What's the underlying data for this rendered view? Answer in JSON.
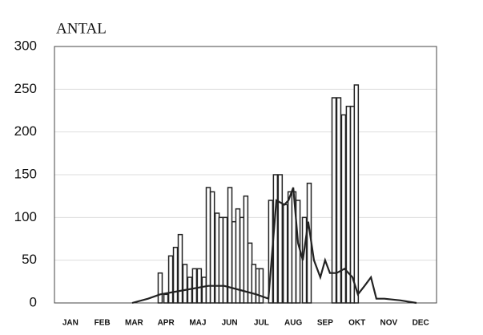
{
  "chart_data": {
    "type": "bar",
    "title": "ANTAL",
    "xlim": [
      0,
      12
    ],
    "xticks": [
      {
        "value": 0.5,
        "label": "JAN"
      },
      {
        "value": 1.5,
        "label": "FEB"
      },
      {
        "value": 2.5,
        "label": "MAR"
      },
      {
        "value": 3.5,
        "label": "APR"
      },
      {
        "value": 4.5,
        "label": "MAJ"
      },
      {
        "value": 5.5,
        "label": "JUN"
      },
      {
        "value": 6.5,
        "label": "JUL"
      },
      {
        "value": 7.5,
        "label": "AUG"
      },
      {
        "value": 8.5,
        "label": "SEP"
      },
      {
        "value": 9.5,
        "label": "OKT"
      },
      {
        "value": 10.5,
        "label": "NOV"
      },
      {
        "value": 11.5,
        "label": "DEC"
      }
    ],
    "ylim": [
      0,
      300
    ],
    "yticks": [
      0,
      50,
      100,
      150,
      200,
      250,
      300
    ],
    "grid": true,
    "series": [
      {
        "type": "bar",
        "color": "#ffffff",
        "x": [
          3.32,
          3.5,
          3.65,
          3.8,
          3.95,
          4.1,
          4.25,
          4.4,
          4.55,
          4.7,
          4.83,
          4.96,
          5.11,
          5.23,
          5.36,
          5.51,
          5.64,
          5.76,
          5.89,
          6.01,
          6.14,
          6.26,
          6.39,
          6.49,
          6.79,
          6.94,
          7.09,
          7.25,
          7.4,
          7.52,
          7.65,
          7.85,
          8.0,
          8.78,
          8.93,
          9.08,
          9.23,
          9.36,
          9.48
        ],
        "values": [
          35,
          10,
          55,
          65,
          80,
          45,
          30,
          40,
          40,
          30,
          135,
          130,
          105,
          100,
          100,
          135,
          95,
          110,
          100,
          125,
          70,
          45,
          40,
          40,
          120,
          150,
          150,
          115,
          130,
          130,
          120,
          100,
          140,
          240,
          240,
          220,
          230,
          230,
          255
        ]
      },
      {
        "type": "line",
        "color": "#222222",
        "x": [
          2.44,
          2.94,
          3.32,
          4.08,
          4.83,
          5.33,
          5.84,
          6.34,
          6.72,
          6.97,
          7.22,
          7.35,
          7.5,
          7.65,
          7.8,
          7.97,
          8.15,
          8.35,
          8.5,
          8.65,
          8.86,
          9.11,
          9.36,
          9.53,
          9.74,
          9.94,
          10.11,
          10.36,
          10.87,
          11.37
        ],
        "values": [
          0,
          5,
          10,
          15,
          20,
          20,
          15,
          10,
          5,
          120,
          115,
          120,
          135,
          70,
          50,
          95,
          50,
          30,
          50,
          35,
          35,
          40,
          30,
          10,
          20,
          30,
          5,
          5,
          3,
          0
        ]
      }
    ]
  }
}
